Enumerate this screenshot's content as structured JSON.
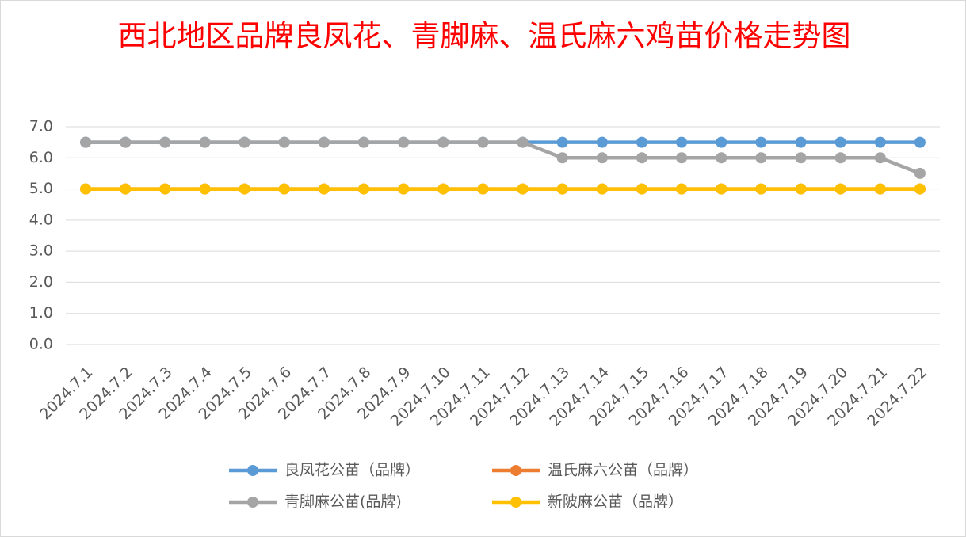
{
  "chart_data": {
    "type": "line",
    "title": "西北地区品牌良凤花、青脚麻、温氏麻六鸡苗价格走势图",
    "categories": [
      "2024.7.1",
      "2024.7.2",
      "2024.7.3",
      "2024.7.4",
      "2024.7.5",
      "2024.7.6",
      "2024.7.7",
      "2024.7.8",
      "2024.7.9",
      "2024.7.10",
      "2024.7.11",
      "2024.7.12",
      "2024.7.13",
      "2024.7.14",
      "2024.7.15",
      "2024.7.16",
      "2024.7.17",
      "2024.7.18",
      "2024.7.19",
      "2024.7.20",
      "2024.7.21",
      "2024.7.22"
    ],
    "series": [
      {
        "name": "良凤花公苗（品牌）",
        "color": "#5b9bd5",
        "values": [
          6.5,
          6.5,
          6.5,
          6.5,
          6.5,
          6.5,
          6.5,
          6.5,
          6.5,
          6.5,
          6.5,
          6.5,
          6.5,
          6.5,
          6.5,
          6.5,
          6.5,
          6.5,
          6.5,
          6.5,
          6.5,
          6.5
        ]
      },
      {
        "name": "温氏麻六公苗（品牌）",
        "color": "#ed7d31",
        "values": [
          5,
          5,
          5,
          5,
          5,
          5,
          5,
          5,
          5,
          5,
          5,
          5,
          5,
          5,
          5,
          5,
          5,
          5,
          5,
          5,
          5,
          5
        ]
      },
      {
        "name": "青脚麻公苗(品牌)",
        "color": "#a5a5a5",
        "values": [
          6.5,
          6.5,
          6.5,
          6.5,
          6.5,
          6.5,
          6.5,
          6.5,
          6.5,
          6.5,
          6.5,
          6.5,
          6,
          6,
          6,
          6,
          6,
          6,
          6,
          6,
          6,
          5.5
        ]
      },
      {
        "name": "新陂麻公苗（品牌）",
        "color": "#ffc000",
        "values": [
          5,
          5,
          5,
          5,
          5,
          5,
          5,
          5,
          5,
          5,
          5,
          5,
          5,
          5,
          5,
          5,
          5,
          5,
          5,
          5,
          5,
          5
        ]
      }
    ],
    "ylim": [
      0,
      7
    ],
    "yticks": [
      {
        "value": 0,
        "label": "0.0"
      },
      {
        "value": 1,
        "label": "1.0"
      },
      {
        "value": 2,
        "label": "2.0"
      },
      {
        "value": 3,
        "label": "3.0"
      },
      {
        "value": 4,
        "label": "4.0"
      },
      {
        "value": 5,
        "label": "5.0"
      },
      {
        "value": 6,
        "label": "6.0"
      },
      {
        "value": 7,
        "label": "7.0"
      }
    ],
    "grid": true
  }
}
